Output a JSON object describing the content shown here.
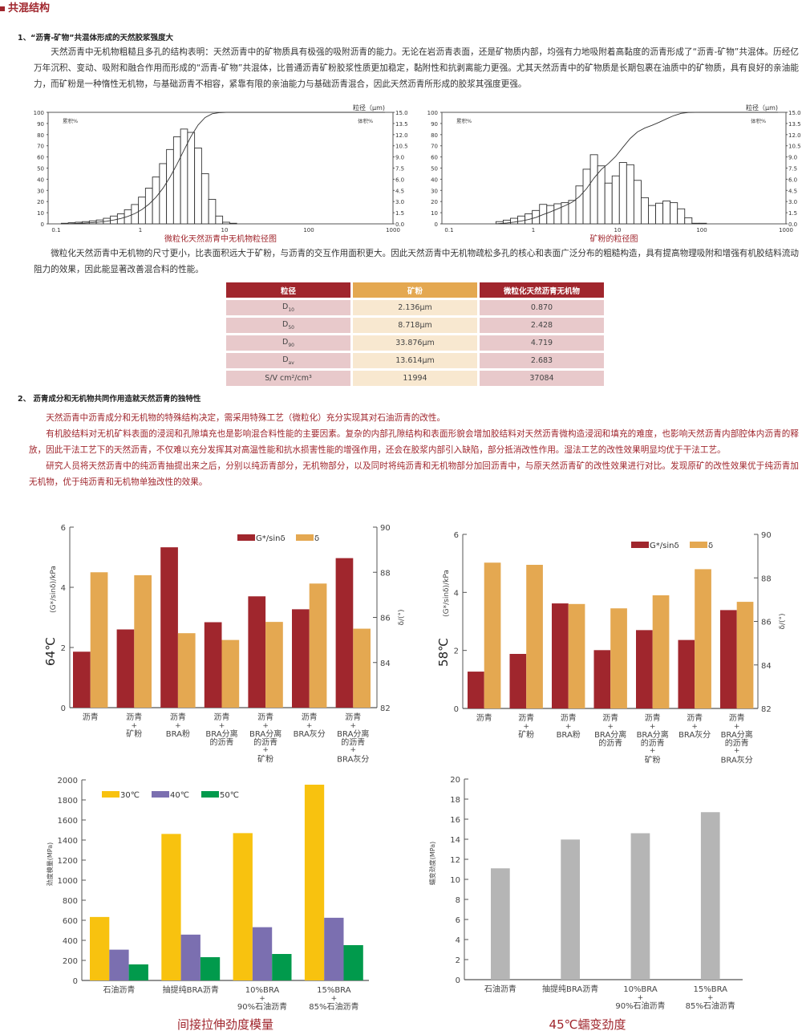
{
  "header": {
    "title": "共混结构"
  },
  "section1": {
    "title": "1、“沥青-矿物”共混体形成的天然胶浆强度大",
    "paragraph": "天然沥青中无机物粗糙且多孔的结构表明：天然沥青中的矿物质具有极强的吸附沥青的能力。无论在岩沥青表面，还是矿物质内部，均强有力地吸附着高黏度的沥青形成了“沥青-矿物”共混体。历经亿万年沉积、变动、吸附和融合作用而形成的“沥青-矿物”共混体，比普通沥青矿粉胶浆性质更加稳定，黏附性和抗剥离能力更强。尤其天然沥青中的矿物质是长期包裹在油质中的矿物质，具有良好的亲油能力，而矿粉是一种惰性无机物，与基础沥青不相容，紧靠有限的亲油能力与基础沥青混合，因此天然沥青所形成的胶浆其强度更强。",
    "paragraph2": "微粒化天然沥青中无机物的尺寸更小，比表面积远大于矿粉，与沥青的交互作用面积更大。因此天然沥青中无机物疏松多孔的核心和表面广泛分布的粗糙构造，具有提高物理吸附和增强有机胶结料流动阻力的效果，因此能显著改善混合料的性能。"
  },
  "psd_charts": [
    {
      "caption": "微粒化天然沥青中无机物粒径图",
      "left_label": "累积%",
      "right_label": "体积%",
      "unit_label": "粒径（μm)",
      "left_ticks": [
        "100",
        "90",
        "80",
        "70",
        "60",
        "50",
        "40",
        "30",
        "20",
        "10",
        "0"
      ],
      "right_ticks": [
        "15.0",
        "13.5",
        "12.0",
        "10.5",
        "9.0",
        "7.5",
        "6.0",
        "4.5",
        "3.0",
        "1.5",
        "0.0"
      ],
      "x_ticks": [
        "0.1",
        "1",
        "10",
        "100",
        "1000"
      ],
      "bin_start_um": 0.115,
      "bins_per_decade": 12,
      "volume_pct": [
        0.08,
        0.15,
        0.22,
        0.3,
        0.4,
        0.52,
        0.75,
        1.05,
        1.35,
        1.9,
        2.6,
        3.6,
        4.8,
        6.3,
        8.1,
        10.0,
        11.7,
        12.75,
        12.3,
        10.2,
        6.75,
        3.3,
        1.05,
        0.22,
        0.08
      ]
    },
    {
      "caption": "矿粉的粒径图",
      "left_label": "累积%",
      "right_label": "体积%",
      "unit_label": "粒径（μm)",
      "left_ticks": [
        "100",
        "90",
        "80",
        "70",
        "60",
        "50",
        "40",
        "30",
        "20",
        "10",
        "0"
      ],
      "right_ticks": [
        "15.0",
        "13.5",
        "12.0",
        "10.5",
        "9.0",
        "7.5",
        "6.0",
        "4.5",
        "3.0",
        "1.5",
        "0.0"
      ],
      "x_ticks": [
        "0.1",
        "1",
        "10",
        "100",
        "1000"
      ],
      "bin_start_um": 0.36,
      "bins_per_decade": 11.6,
      "volume_pct": [
        0.3,
        0.5,
        0.75,
        1.05,
        1.35,
        1.8,
        2.62,
        2.47,
        2.7,
        2.85,
        3.15,
        5.1,
        7.35,
        9.3,
        7.8,
        5.48,
        6.45,
        8.25,
        7.95,
        5.85,
        3.52,
        2.47,
        2.78,
        3.08,
        2.85,
        2.02,
        0.82,
        0.08,
        0.08
      ]
    }
  ],
  "table": {
    "headers": [
      "粒径",
      "矿粉",
      "微粒化天然沥青无机物"
    ],
    "rows": [
      {
        "label": "D",
        "sub": "10",
        "a": "2.136μm",
        "b": "0.870"
      },
      {
        "label": "D",
        "sub": "50",
        "a": "8.718μm",
        "b": "2.428"
      },
      {
        "label": "D",
        "sub": "90",
        "a": "33.876μm",
        "b": "4.719"
      },
      {
        "label": "D",
        "sub": "av",
        "a": "13.614μm",
        "b": "2.683"
      },
      {
        "label": "S/V cm²/cm³",
        "sub": "",
        "a": "11994",
        "b": "37084"
      }
    ]
  },
  "section2": {
    "title": "2、 沥青成分和无机物共同作用造就天然沥青的独特性",
    "paragraphs": [
      "天然沥青中沥青成分和无机物的特殊结构决定，需采用特殊工艺（微粒化）充分实现其对石油沥青的改性。",
      "有机胶结料对无机矿料表面的浸润和孔隙填充也是影响混合料性能的主要因素。复杂的内部孔隙结构和表面形貌会增加胶结料对天然沥青微构造浸润和填充的难度，也影响天然沥青内部腔体内沥青的释放，因此干法工艺下的天然沥青，不仅难以充分发挥其对高温性能和抗水损害性能的增强作用，还会在胶浆内部引入缺陷，部分抵消改性作用。湿法工艺的改性效果明显均优于干法工艺。",
      "研究人员将天然沥青中的纯沥青抽提出来之后，分别以纯沥青部分，无机物部分，以及同时将纯沥青和无机物部分加回沥青中，与原天然沥青矿的改性效果进行对比。发现原矿的改性效果优于纯沥青加无机物，优于纯沥青和无机物单独改性的效果。"
    ]
  },
  "colors": {
    "accent": "#a0262d",
    "red_bar": "#a0262d",
    "orange_bar": "#e4a851",
    "yellow": "#f8c20f",
    "purple": "#7b6fb0",
    "green": "#019a4c",
    "gray": "#b5b5b5"
  },
  "chart_data": [
    {
      "type": "bar",
      "title": "64℃",
      "ylabel": "(G*/sinδ)/kPa",
      "y2label": "δ/(°)",
      "ylim": [
        0,
        6
      ],
      "y2lim": [
        82,
        90
      ],
      "yticks": [
        "0",
        "2",
        "4",
        "6"
      ],
      "y2ticks": [
        "82",
        "84",
        "86",
        "88",
        "90"
      ],
      "categories": [
        [
          "沥青"
        ],
        [
          "沥青",
          "+",
          "矿粉"
        ],
        [
          "沥青",
          "+",
          "BRA粉"
        ],
        [
          "沥青",
          "+",
          "BRA分离",
          "的沥青"
        ],
        [
          "沥青",
          "+",
          "BRA分离",
          "的沥青",
          "+",
          "矿粉"
        ],
        [
          "沥青",
          "+",
          "BRA灰分"
        ],
        [
          "沥青",
          "+",
          "BRA分离",
          "的沥青",
          "+",
          "BRA灰分"
        ]
      ],
      "legend": "top-right",
      "series": [
        {
          "name": "G*/sinδ",
          "axis": "left",
          "color": "#a0262d",
          "values": [
            1.86,
            2.6,
            5.33,
            2.84,
            3.7,
            3.27,
            4.97
          ]
        },
        {
          "name": "δ",
          "axis": "right",
          "color": "#e4a851",
          "values": [
            88.0,
            87.87,
            85.3,
            85.0,
            85.8,
            87.5,
            85.5
          ]
        }
      ]
    },
    {
      "type": "bar",
      "title": "58℃",
      "ylabel": "(G*/sinδ)/kPa",
      "y2label": "δ/(°)",
      "ylim": [
        0,
        6
      ],
      "y2lim": [
        82,
        90
      ],
      "yticks": [
        "0",
        "2",
        "4",
        "6"
      ],
      "y2ticks": [
        "82",
        "84",
        "86",
        "88",
        "90"
      ],
      "categories": [
        [
          "沥青"
        ],
        [
          "沥青",
          "+",
          "矿粉"
        ],
        [
          "沥青",
          "+",
          "BRA粉"
        ],
        [
          "沥青",
          "+",
          "BRA分离",
          "的沥青"
        ],
        [
          "沥青",
          "+",
          "BRA分离",
          "的沥青",
          "+",
          "矿粉"
        ],
        [
          "沥青",
          "+",
          "BRA灰分"
        ],
        [
          "沥青",
          "+",
          "BRA分离",
          "的沥青",
          "+",
          "BRA灰分"
        ]
      ],
      "legend": "top-right",
      "series": [
        {
          "name": "G*/sinδ",
          "axis": "left",
          "color": "#a0262d",
          "values": [
            1.27,
            1.88,
            3.62,
            2.01,
            2.7,
            2.36,
            3.39
          ]
        },
        {
          "name": "δ",
          "axis": "right",
          "color": "#e4a851",
          "values": [
            88.7,
            88.6,
            86.8,
            86.6,
            87.2,
            88.4,
            86.9
          ]
        }
      ]
    },
    {
      "type": "bar",
      "title": "间接拉伸劲度模量",
      "ylabel": "劲度模量(MPa)",
      "ylim": [
        0,
        2000
      ],
      "yticks": [
        "0",
        "200",
        "400",
        "600",
        "800",
        "1000",
        "1200",
        "1400",
        "1600",
        "1800",
        "2000"
      ],
      "categories": [
        [
          "石油沥青"
        ],
        [
          "抽提纯BRA沥青"
        ],
        [
          "10%BRA",
          "+",
          "90%石油沥青"
        ],
        [
          "15%BRA",
          "+",
          "85%石油沥青"
        ]
      ],
      "legend": "top-left",
      "series": [
        {
          "name": "30℃",
          "color": "#f8c20f",
          "values": [
            633,
            1461,
            1469,
            1952
          ]
        },
        {
          "name": "40℃",
          "color": "#7b6fb0",
          "values": [
            307,
            457,
            531,
            625
          ]
        },
        {
          "name": "50℃",
          "color": "#019a4c",
          "values": [
            160,
            232,
            264,
            352
          ]
        }
      ]
    },
    {
      "type": "bar",
      "title": "45℃蠕变劲度",
      "ylabel": "蠕变劲度(MPa)",
      "ylim": [
        0,
        20
      ],
      "yticks": [
        "0",
        "2",
        "4",
        "6",
        "8",
        "10",
        "12",
        "14",
        "16",
        "18",
        "20"
      ],
      "categories": [
        [
          "石油沥青"
        ],
        [
          "抽提纯BRA沥青"
        ],
        [
          "10%BRA",
          "+",
          "90%石油沥青"
        ],
        [
          "15%BRA",
          "+",
          "85%石油沥青"
        ]
      ],
      "series": [
        {
          "name": "蠕变劲度",
          "color": "#b5b5b5",
          "values": [
            11.1,
            13.97,
            14.6,
            16.7
          ]
        }
      ]
    }
  ]
}
